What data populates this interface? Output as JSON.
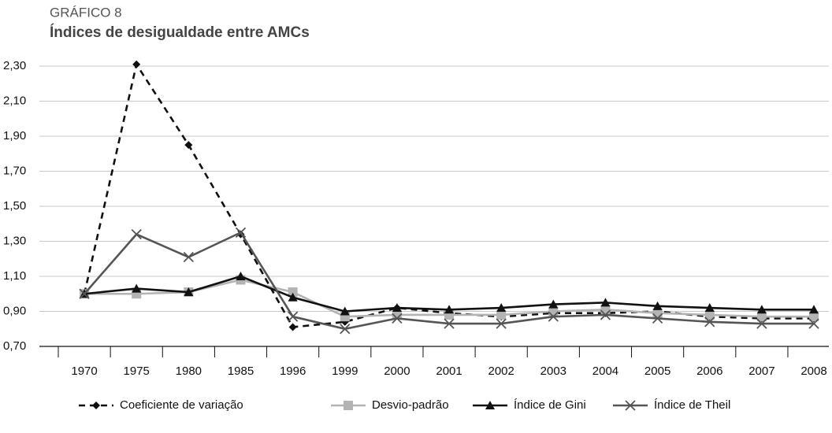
{
  "chart_data": {
    "type": "line",
    "title": "GRÁFICO 8",
    "subtitle": "Índices de desigualdade entre AMCs",
    "categories": [
      "1970",
      "1975",
      "1980",
      "1985",
      "1996",
      "1999",
      "2000",
      "2001",
      "2002",
      "2003",
      "2004",
      "2005",
      "2006",
      "2007",
      "2008"
    ],
    "series": [
      {
        "name": "Coeficiente de variação",
        "color": "#111111",
        "dash": true,
        "marker": "diamond",
        "values": [
          1.0,
          2.31,
          1.85,
          1.34,
          0.81,
          0.84,
          0.92,
          0.89,
          0.87,
          0.89,
          0.89,
          0.9,
          0.87,
          0.86,
          0.86
        ]
      },
      {
        "name": "Desvio-padrão",
        "color": "#b3b3b3",
        "dash": false,
        "marker": "square",
        "values": [
          1.0,
          1.0,
          1.01,
          1.08,
          1.01,
          0.87,
          0.88,
          0.88,
          0.88,
          0.9,
          0.91,
          0.89,
          0.88,
          0.87,
          0.87
        ]
      },
      {
        "name": "Índice de Gini",
        "color": "#111111",
        "dash": false,
        "marker": "triangle",
        "values": [
          1.0,
          1.03,
          1.01,
          1.1,
          0.98,
          0.9,
          0.92,
          0.91,
          0.92,
          0.94,
          0.95,
          0.93,
          0.92,
          0.91,
          0.91
        ]
      },
      {
        "name": "Índice de Theil",
        "color": "#555555",
        "dash": false,
        "marker": "x",
        "values": [
          1.0,
          1.34,
          1.21,
          1.35,
          0.87,
          0.8,
          0.86,
          0.83,
          0.83,
          0.87,
          0.88,
          0.86,
          0.84,
          0.83,
          0.83
        ]
      }
    ],
    "ylim": [
      0.7,
      2.3
    ],
    "yticks": [
      {
        "value": 0.7,
        "label": "0,70"
      },
      {
        "value": 0.9,
        "label": "0,90"
      },
      {
        "value": 1.1,
        "label": "1,10"
      },
      {
        "value": 1.3,
        "label": "1,30"
      },
      {
        "value": 1.5,
        "label": "1,50"
      },
      {
        "value": 1.7,
        "label": "1,70"
      },
      {
        "value": 1.9,
        "label": "1,90"
      },
      {
        "value": 2.1,
        "label": "2,10"
      },
      {
        "value": 2.3,
        "label": "2,30"
      }
    ],
    "grid": true,
    "legend": "bottom"
  }
}
